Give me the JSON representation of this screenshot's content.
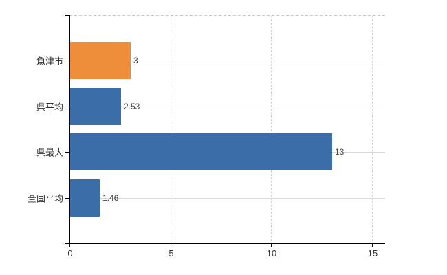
{
  "chart_data": {
    "type": "bar",
    "orientation": "horizontal",
    "title": "",
    "categories": [
      "魚津市",
      "県平均",
      "県最大",
      "全国平均"
    ],
    "values": [
      3,
      2.53,
      13,
      1.46
    ],
    "value_labels": [
      "3",
      "2.53",
      "13",
      "1.46"
    ],
    "bar_colors": [
      "#EF8E3A",
      "#3B6DA9",
      "#3B6DA9",
      "#3B6DA9"
    ],
    "x_ticks": [
      0,
      5,
      10,
      15
    ],
    "x_tick_labels": [
      "0",
      "5",
      "10",
      "15"
    ],
    "xlim": [
      0,
      15.65
    ],
    "grid": true,
    "legend": false,
    "colors": {
      "bar_highlight": "#EF8E3A",
      "bar_default": "#3B6DA9",
      "axis": "#000000",
      "gridline": "#D9D9D9",
      "vertical_gridline": "#D4D4D4",
      "top_border": "#C8C8C8",
      "category_text": "#333333",
      "value_text": "#444444"
    }
  }
}
